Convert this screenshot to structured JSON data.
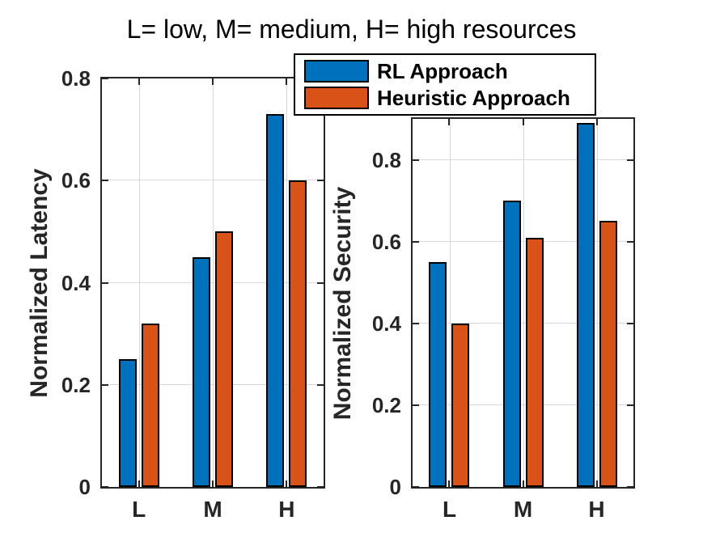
{
  "chart_data": {
    "type": "bar",
    "title": "L= low, M= medium, H= high resources",
    "categories": [
      "L",
      "M",
      "H"
    ],
    "grid": true,
    "legend": {
      "position": "top-center",
      "entries": [
        "RL Approach",
        "Heuristic Approach"
      ]
    },
    "colors": {
      "rl": "#0072BD",
      "heuristic": "#D95319",
      "axis": "#262626",
      "grid": "#d8d8d8"
    },
    "subplots": [
      {
        "ylabel": "Normalized Latency",
        "ylim": [
          0,
          0.8
        ],
        "yticks": [
          0,
          0.2,
          0.4,
          0.6,
          0.8
        ],
        "ytick_labels": [
          "0",
          "0.2",
          "0.4",
          "0.6",
          "0.8"
        ],
        "series": [
          {
            "name": "RL Approach",
            "color": "#0072BD",
            "values": [
              0.25,
              0.45,
              0.73
            ]
          },
          {
            "name": "Heuristic Approach",
            "color": "#D95319",
            "values": [
              0.32,
              0.5,
              0.6
            ]
          }
        ]
      },
      {
        "ylabel": "Normalized Security",
        "ylim": [
          0,
          0.9
        ],
        "yticks": [
          0,
          0.2,
          0.4,
          0.6,
          0.8
        ],
        "ytick_labels": [
          "0",
          "0.2",
          "0.4",
          "0.6",
          "0.8"
        ],
        "series": [
          {
            "name": "RL Approach",
            "color": "#0072BD",
            "values": [
              0.55,
              0.7,
              0.89
            ]
          },
          {
            "name": "Heuristic Approach",
            "color": "#D95319",
            "values": [
              0.4,
              0.61,
              0.65
            ]
          }
        ]
      }
    ]
  }
}
